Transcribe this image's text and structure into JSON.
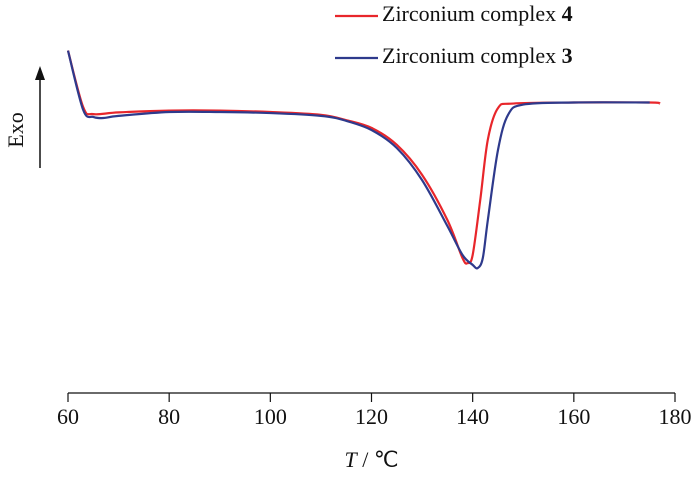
{
  "chart_data": {
    "type": "line",
    "x_label": "T / ℃",
    "y_label": "Exo",
    "xlim": [
      60,
      180
    ],
    "xticks": [
      60,
      80,
      100,
      120,
      140,
      160,
      180
    ],
    "ylim": [
      0,
      100
    ],
    "legend": "upper right",
    "series": [
      {
        "name": "Zirconium complex 4",
        "color": "#e8262b",
        "x": [
          60,
          63,
          65,
          70,
          80,
          90,
          100,
          110,
          115,
          120,
          125,
          130,
          135,
          138,
          139,
          140,
          141.5,
          143,
          145,
          148,
          160,
          175,
          177
        ],
        "values": [
          97,
          81,
          79,
          79.5,
          80,
          80,
          79.6,
          78.8,
          77.3,
          75.1,
          70.3,
          61.8,
          49,
          38.2,
          36.8,
          39.1,
          54.7,
          71.8,
          80.7,
          82,
          82.3,
          82.3,
          82
        ]
      },
      {
        "name": "Zirconium complex 3",
        "color": "#2e3a8c",
        "x": [
          60,
          63,
          65,
          67,
          70,
          80,
          90,
          100,
          110,
          115,
          120,
          125,
          130,
          135,
          138,
          140,
          141,
          142,
          143,
          145,
          147,
          150,
          160,
          175
        ],
        "values": [
          97,
          80.2,
          78.2,
          77.9,
          78.5,
          79.6,
          79.6,
          79.3,
          78.5,
          77.1,
          74.5,
          69.4,
          60.3,
          47.3,
          39.1,
          36.3,
          35.4,
          38.2,
          49,
          68.8,
          78.8,
          81.7,
          82.3,
          82.3
        ]
      }
    ]
  }
}
